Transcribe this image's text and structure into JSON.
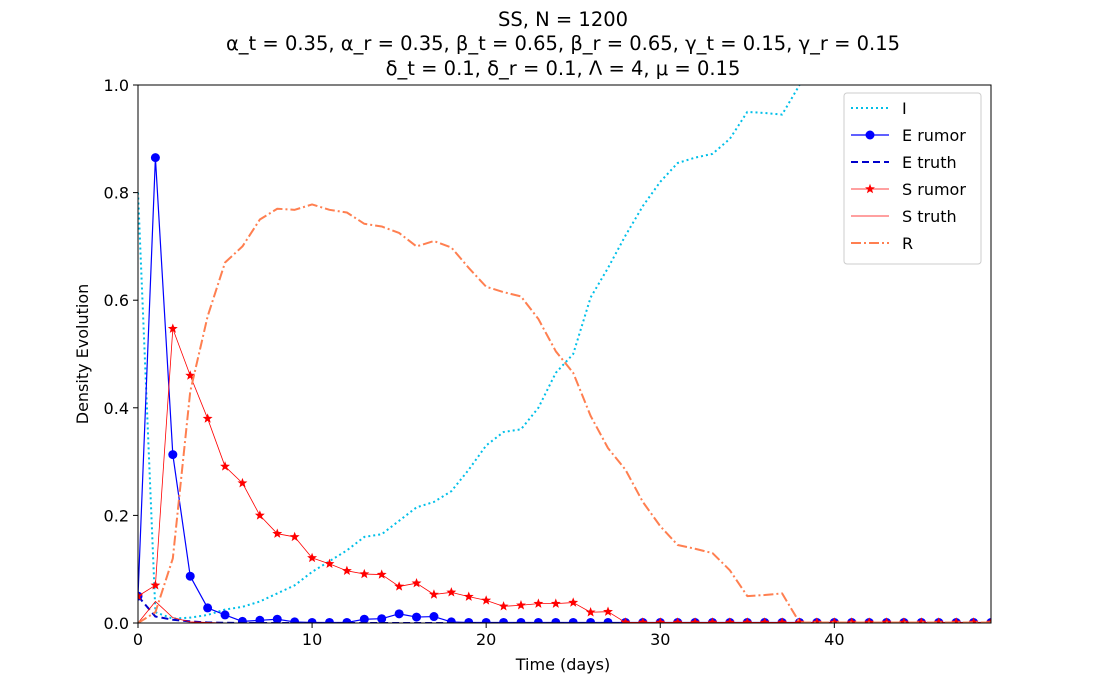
{
  "chart_data": {
    "type": "line",
    "title": "SS, N = 1200",
    "subtitle_lines": [
      "α_t = 0.35, α_r = 0.35, β_t = 0.65, β_r = 0.65, γ_t = 0.15, γ_r = 0.15",
      "δ_t = 0.1, δ_r = 0.1, Λ = 4, μ = 0.15"
    ],
    "xlabel": "Time (days)",
    "ylabel": "Density Evolution",
    "xlim": [
      0,
      49
    ],
    "ylim": [
      0,
      1.0
    ],
    "xticks": [
      "0",
      "10",
      "20",
      "30",
      "40"
    ],
    "yticks": [
      "0.0",
      "0.2",
      "0.4",
      "0.6",
      "0.8",
      "1.0"
    ],
    "grid": false,
    "legend_position": "top-right",
    "series": [
      {
        "name": "I",
        "color": "#00bfe8",
        "dash": "2,3",
        "width": 2,
        "marker": "none",
        "x": [
          0,
          1,
          2,
          3,
          4,
          5,
          6,
          7,
          8,
          9,
          10,
          11,
          12,
          13,
          14,
          15,
          16,
          17,
          18,
          19,
          20,
          21,
          22,
          23,
          24,
          25,
          26,
          27,
          28,
          29,
          30,
          31,
          32,
          33,
          34,
          35,
          36,
          37,
          38
        ],
        "y": [
          0.8,
          0.02,
          0.008,
          0.01,
          0.015,
          0.025,
          0.03,
          0.04,
          0.055,
          0.07,
          0.095,
          0.115,
          0.135,
          0.16,
          0.165,
          0.19,
          0.215,
          0.225,
          0.245,
          0.285,
          0.33,
          0.355,
          0.36,
          0.4,
          0.465,
          0.5,
          0.605,
          0.66,
          0.72,
          0.775,
          0.82,
          0.855,
          0.865,
          0.872,
          0.9,
          0.95,
          0.948,
          0.945,
          1.0
        ]
      },
      {
        "name": "E rumor",
        "color": "#0000ff",
        "dash": "",
        "width": 1.2,
        "marker": "circle",
        "x": [
          0,
          1,
          2,
          3,
          4,
          5,
          6,
          7,
          8,
          9,
          10,
          11,
          12,
          13,
          14,
          15,
          16,
          17,
          18,
          19,
          20,
          21,
          22,
          23,
          24,
          25,
          26,
          27,
          28,
          29,
          30,
          31,
          32,
          33,
          34,
          35,
          36,
          37,
          38,
          39,
          40,
          41,
          42,
          43,
          44,
          45,
          46,
          47,
          48,
          49
        ],
        "y": [
          0.05,
          0.865,
          0.313,
          0.087,
          0.028,
          0.015,
          0.003,
          0.005,
          0.007,
          0.002,
          0.001,
          0.001,
          0.001,
          0.007,
          0.008,
          0.017,
          0.011,
          0.012,
          0.002,
          0.001,
          0.001,
          0.001,
          0.001,
          0.001,
          0.001,
          0.001,
          0.001,
          0.001,
          0.001,
          0.001,
          0.001,
          0.001,
          0.001,
          0.001,
          0.001,
          0.001,
          0.001,
          0.001,
          0.001,
          0.001,
          0.001,
          0.001,
          0.001,
          0.001,
          0.001,
          0.001,
          0.001,
          0.001,
          0.001,
          0.001
        ]
      },
      {
        "name": "E truth",
        "color": "#0000cc",
        "dash": "7,4",
        "width": 2,
        "marker": "none",
        "x": [
          0,
          1,
          2,
          3,
          4,
          5,
          6,
          8,
          10,
          20,
          30,
          40,
          49
        ],
        "y": [
          0.05,
          0.012,
          0.006,
          0.003,
          0.001,
          0.0005,
          0.0,
          0.0,
          0.0,
          0.0,
          0.0,
          0.0,
          0.0
        ]
      },
      {
        "name": "S rumor",
        "color": "#ff0000",
        "dash": "",
        "width": 0.8,
        "marker": "star",
        "x": [
          0,
          1,
          2,
          3,
          4,
          5,
          6,
          7,
          8,
          9,
          10,
          11,
          12,
          13,
          14,
          15,
          16,
          17,
          18,
          19,
          20,
          21,
          22,
          23,
          24,
          25,
          26,
          27,
          28,
          29,
          30,
          31,
          32,
          33,
          34,
          35,
          36,
          37,
          38,
          39,
          40,
          41,
          42,
          43,
          44,
          45,
          46,
          47,
          48,
          49
        ],
        "y": [
          0.05,
          0.07,
          0.547,
          0.46,
          0.38,
          0.291,
          0.26,
          0.2,
          0.166,
          0.16,
          0.121,
          0.11,
          0.097,
          0.091,
          0.09,
          0.068,
          0.074,
          0.053,
          0.057,
          0.049,
          0.042,
          0.031,
          0.033,
          0.036,
          0.036,
          0.038,
          0.02,
          0.021,
          0.001,
          0.001,
          0.001,
          0.001,
          0.001,
          0.001,
          0.001,
          0.001,
          0.001,
          0.001,
          0.001,
          0.001,
          0.001,
          0.001,
          0.001,
          0.001,
          0.001,
          0.001,
          0.001,
          0.001,
          0.001,
          0.001
        ]
      },
      {
        "name": "S truth",
        "color": "#ff0000",
        "dash": "",
        "width": 0.8,
        "marker": "none",
        "x": [
          0,
          1,
          2,
          3,
          4,
          5,
          6,
          8,
          10,
          20,
          30,
          40,
          49
        ],
        "y": [
          0.0,
          0.04,
          0.01,
          0.002,
          0.001,
          0.0,
          0.0,
          0.0,
          0.0,
          0.0,
          0.0,
          0.0,
          0.0
        ]
      },
      {
        "name": "R",
        "color": "#ff7f50",
        "dash": "10,3,2,3",
        "width": 2,
        "marker": "none",
        "x": [
          0,
          1,
          2,
          3,
          4,
          5,
          6,
          7,
          8,
          9,
          10,
          11,
          12,
          13,
          14,
          15,
          16,
          17,
          18,
          19,
          20,
          21,
          22,
          23,
          24,
          25,
          26,
          27,
          28,
          29,
          30,
          31,
          32,
          33,
          34,
          35,
          36,
          37,
          38,
          39,
          40,
          41,
          42,
          43,
          44,
          45,
          46,
          47,
          48,
          49
        ],
        "y": [
          0.0,
          0.02,
          0.12,
          0.43,
          0.57,
          0.67,
          0.7,
          0.75,
          0.77,
          0.768,
          0.778,
          0.768,
          0.763,
          0.742,
          0.737,
          0.725,
          0.7,
          0.71,
          0.698,
          0.66,
          0.625,
          0.615,
          0.607,
          0.565,
          0.505,
          0.465,
          0.385,
          0.325,
          0.285,
          0.225,
          0.18,
          0.145,
          0.138,
          0.13,
          0.098,
          0.05,
          0.052,
          0.055,
          0.001,
          0.001,
          0.001,
          0.001,
          0.001,
          0.001,
          0.001,
          0.001,
          0.001,
          0.001,
          0.001,
          0.001
        ]
      }
    ]
  }
}
